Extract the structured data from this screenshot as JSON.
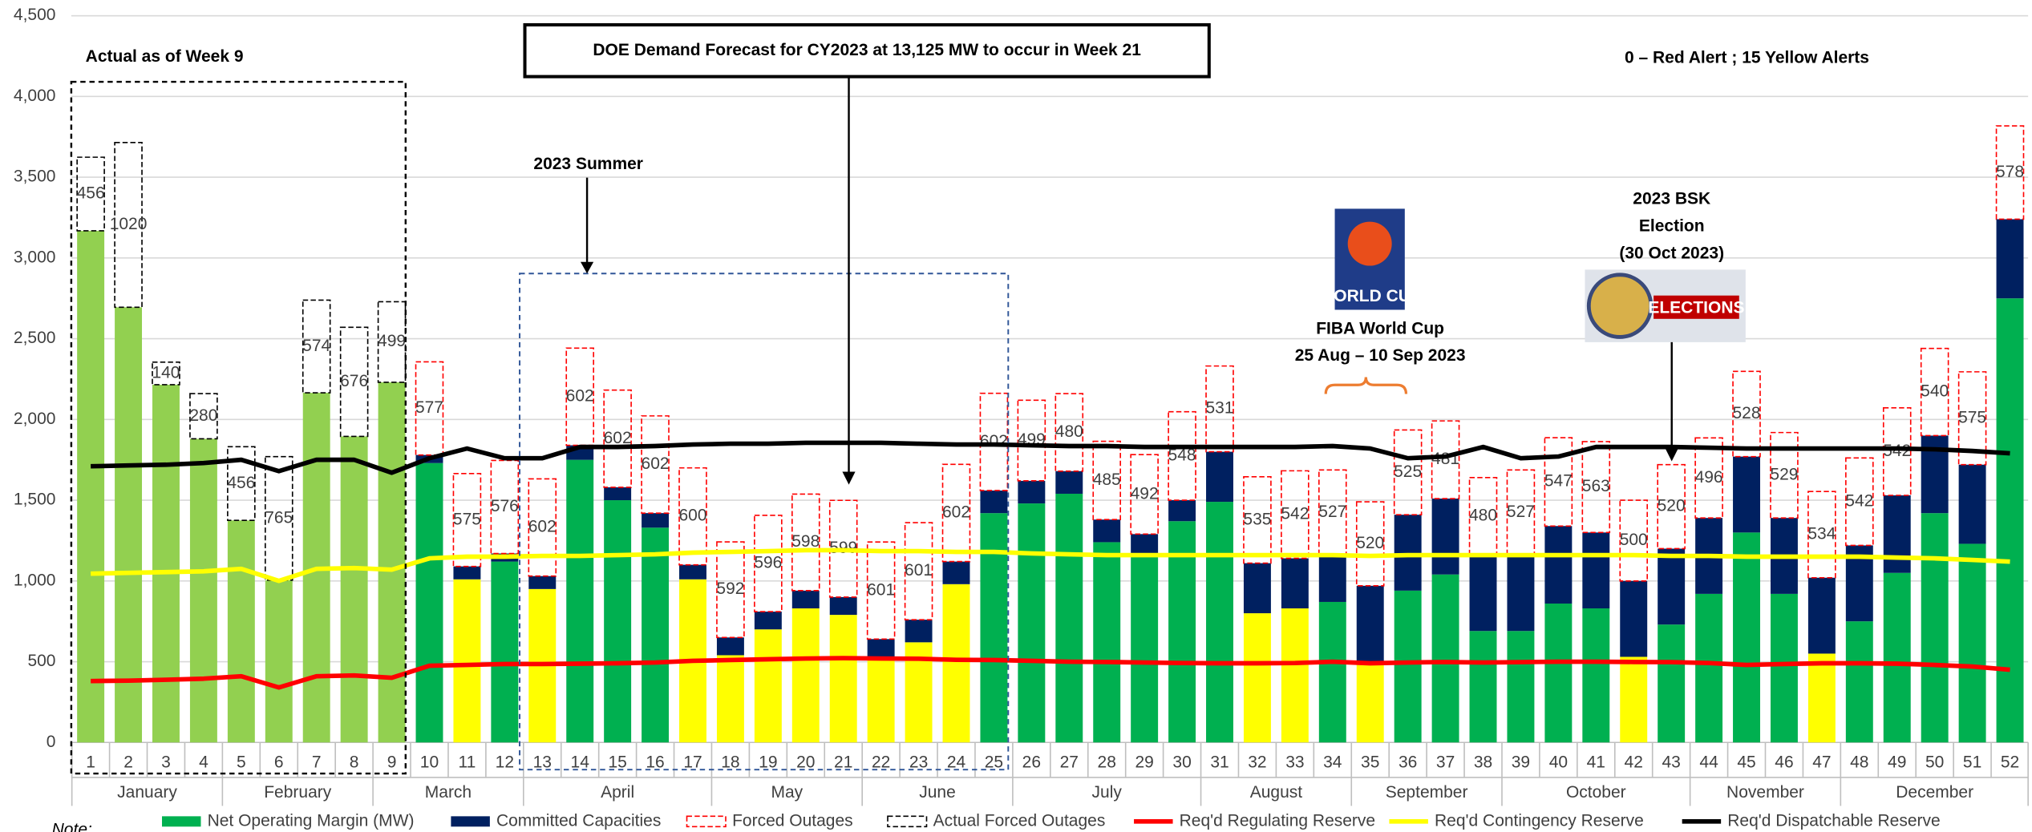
{
  "chart_data": {
    "type": "bar",
    "categories": [
      "1",
      "2",
      "3",
      "4",
      "5",
      "6",
      "7",
      "8",
      "9",
      "10",
      "11",
      "12",
      "13",
      "14",
      "15",
      "16",
      "17",
      "18",
      "19",
      "20",
      "21",
      "22",
      "23",
      "24",
      "25",
      "26",
      "27",
      "28",
      "29",
      "30",
      "31",
      "32",
      "33",
      "34",
      "35",
      "36",
      "37",
      "38",
      "39",
      "40",
      "41",
      "42",
      "43",
      "44",
      "45",
      "46",
      "47",
      "48",
      "49",
      "50",
      "51",
      "52"
    ],
    "months": [
      {
        "label": "January",
        "span": 4
      },
      {
        "label": "February",
        "span": 4
      },
      {
        "label": "March",
        "span": 4
      },
      {
        "label": "April",
        "span": 5
      },
      {
        "label": "May",
        "span": 4
      },
      {
        "label": "June",
        "span": 4
      },
      {
        "label": "July",
        "span": 5
      },
      {
        "label": "August",
        "span": 4
      },
      {
        "label": "September",
        "span": 4
      },
      {
        "label": "October",
        "span": 5
      },
      {
        "label": "November",
        "span": 4
      },
      {
        "label": "December",
        "span": 5
      }
    ],
    "ylim": [
      0,
      4500
    ],
    "yticks": [
      0,
      500,
      {
        "value": 1000,
        "label": "1,000"
      },
      {
        "value": 1500,
        "label": "1,500"
      },
      {
        "value": 2000,
        "label": "2,000"
      },
      {
        "value": 2500,
        "label": "2,500"
      },
      {
        "value": 3000,
        "label": "3,000"
      },
      {
        "value": 3500,
        "label": "3,500"
      },
      {
        "value": 4000,
        "label": "4,000"
      },
      {
        "value": 4500,
        "label": "4,500"
      }
    ],
    "grid": true,
    "legend": "bottom",
    "series": [
      {
        "name": "Net Operating Margin (MW)",
        "kind": "base",
        "color": "#00b050",
        "colors": [
          "#92d050",
          "#92d050",
          "#92d050",
          "#92d050",
          "#92d050",
          "#92d050",
          "#92d050",
          "#92d050",
          "#92d050",
          "#00b050",
          "#ffff00",
          "#00b050",
          "#ffff00",
          "#00b050",
          "#00b050",
          "#00b050",
          "#ffff00",
          "#ffff00",
          "#ffff00",
          "#ffff00",
          "#ffff00",
          "#ffff00",
          "#ffff00",
          "#ffff00",
          "#00b050",
          "#00b050",
          "#00b050",
          "#00b050",
          "#00b050",
          "#00b050",
          "#00b050",
          "#ffff00",
          "#ffff00",
          "#00b050",
          "#ffff00",
          "#00b050",
          "#00b050",
          "#00b050",
          "#00b050",
          "#00b050",
          "#00b050",
          "#ffff00",
          "#00b050",
          "#00b050",
          "#00b050",
          "#00b050",
          "#ffff00",
          "#00b050",
          "#00b050",
          "#00b050",
          "#00b050",
          "#00b050"
        ],
        "values": [
          3168,
          2695,
          2215,
          1880,
          1375,
          1005,
          2165,
          1895,
          2230,
          1730,
          1010,
          1120,
          950,
          1750,
          1500,
          1330,
          1010,
          540,
          700,
          830,
          790,
          530,
          620,
          980,
          1420,
          1480,
          1540,
          1240,
          1160,
          1370,
          1490,
          800,
          830,
          870,
          480,
          940,
          1040,
          690,
          690,
          860,
          830,
          530,
          730,
          920,
          1300,
          920,
          550,
          750,
          1050,
          1420,
          1230,
          2750
        ]
      },
      {
        "name": "Committed Capacities",
        "kind": "stack",
        "color": "#002060",
        "values": [
          null,
          null,
          null,
          null,
          null,
          null,
          null,
          null,
          null,
          50,
          80,
          50,
          80,
          90,
          80,
          90,
          90,
          110,
          110,
          110,
          110,
          110,
          140,
          140,
          140,
          140,
          140,
          140,
          130,
          130,
          310,
          310,
          310,
          290,
          490,
          470,
          470,
          470,
          470,
          480,
          470,
          470,
          470,
          470,
          470,
          470,
          470,
          470,
          480,
          480,
          490,
          490
        ]
      },
      {
        "name": "Forced Outages",
        "kind": "outage",
        "color": "#ff0000",
        "values": [
          null,
          null,
          null,
          null,
          null,
          null,
          null,
          null,
          null,
          577,
          575,
          576,
          602,
          602,
          602,
          602,
          600,
          592,
          596,
          598,
          599,
          601,
          601,
          602,
          602,
          499,
          480,
          485,
          492,
          548,
          531,
          535,
          542,
          527,
          520,
          525,
          481,
          480,
          527,
          547,
          563,
          500,
          520,
          496,
          528,
          529,
          534,
          542,
          542,
          540,
          575,
          578
        ]
      },
      {
        "name": "Actual Forced Outages",
        "kind": "outage",
        "color": "#000000",
        "values": [
          456,
          1020,
          140,
          280,
          456,
          765,
          574,
          676,
          499,
          null,
          null,
          null,
          null,
          null,
          null,
          null,
          null,
          null,
          null,
          null,
          null,
          null,
          null,
          null,
          null,
          null,
          null,
          null,
          null,
          null,
          null,
          null,
          null,
          null,
          null,
          null,
          null,
          null,
          null,
          null,
          null,
          null,
          null,
          null,
          null,
          null,
          null,
          null,
          null,
          null,
          null,
          null
        ]
      },
      {
        "name": "Req'd Regulating Reserve",
        "kind": "line",
        "color": "#ff0000",
        "values": [
          380,
          383,
          388,
          395,
          410,
          340,
          410,
          415,
          400,
          475,
          480,
          485,
          485,
          488,
          490,
          495,
          505,
          510,
          515,
          520,
          522,
          520,
          518,
          512,
          510,
          505,
          500,
          498,
          495,
          492,
          490,
          490,
          492,
          500,
          490,
          495,
          498,
          495,
          497,
          500,
          500,
          498,
          497,
          492,
          480,
          485,
          490,
          490,
          488,
          480,
          470,
          450
        ]
      },
      {
        "name": "Req'd Contingency Reserve",
        "kind": "line",
        "color": "#ffff00",
        "values": [
          1045,
          1050,
          1055,
          1060,
          1075,
          1000,
          1075,
          1080,
          1070,
          1140,
          1150,
          1150,
          1155,
          1155,
          1160,
          1165,
          1175,
          1180,
          1185,
          1190,
          1190,
          1185,
          1185,
          1180,
          1180,
          1170,
          1165,
          1160,
          1160,
          1160,
          1160,
          1160,
          1160,
          1160,
          1155,
          1160,
          1160,
          1160,
          1160,
          1160,
          1160,
          1160,
          1155,
          1155,
          1150,
          1150,
          1150,
          1150,
          1145,
          1140,
          1130,
          1120
        ]
      },
      {
        "name": "Req'd Dispatchable Reserve",
        "kind": "line",
        "color": "#000000",
        "values": [
          1710,
          1715,
          1720,
          1730,
          1750,
          1680,
          1750,
          1750,
          1670,
          1760,
          1820,
          1760,
          1760,
          1830,
          1830,
          1835,
          1845,
          1850,
          1850,
          1855,
          1855,
          1855,
          1850,
          1845,
          1845,
          1840,
          1835,
          1835,
          1830,
          1830,
          1830,
          1830,
          1830,
          1835,
          1820,
          1760,
          1770,
          1830,
          1760,
          1770,
          1830,
          1830,
          1830,
          1825,
          1820,
          1820,
          1820,
          1820,
          1820,
          1815,
          1805,
          1790
        ]
      }
    ],
    "annotations": {
      "actual": "Actual as of Week 9",
      "forecast": "DOE Demand Forecast for CY2023 at 13,125 MW to occur in Week 21",
      "summer": "2023 Summer",
      "alerts": "0 – Red Alert ; 15 Yellow Alerts",
      "fiba_logo": "WORLD CUP",
      "fiba_1": "FIBA World Cup",
      "fiba_2": "25 Aug – 10 Sep 2023",
      "bsk_1": "2023 BSK",
      "bsk_2": "Election",
      "bsk_3": "(30 Oct 2023)",
      "bsk_logo": "ELECTIONS",
      "note": "Note:"
    }
  }
}
